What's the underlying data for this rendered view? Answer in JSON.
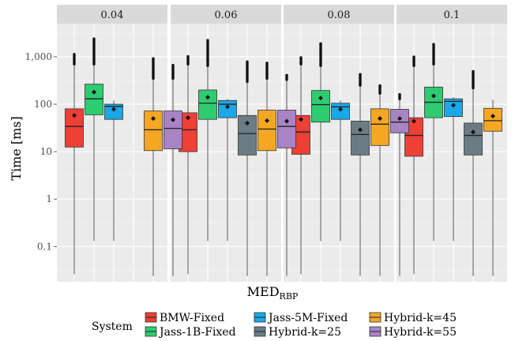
{
  "chart_data": {
    "type": "boxplot",
    "facet_label": "MED",
    "facet_label_subscript": "RBP",
    "facets": [
      "0.04",
      "0.06",
      "0.08",
      "0.1"
    ],
    "ylabel": "Time [ms]",
    "y_scale": "log10",
    "ylim": [
      0.018,
      5000
    ],
    "y_ticks": [
      0.1,
      1,
      10,
      100,
      1000
    ],
    "y_tick_labels": [
      "0.1",
      "1",
      "10",
      "100",
      "1,000"
    ],
    "legend": {
      "title": "System",
      "position": "bottom",
      "entries": [
        {
          "label": "BMW-Fixed",
          "color": "#ee4035"
        },
        {
          "label": "Jass-1B-Fixed",
          "color": "#2ecc71"
        },
        {
          "label": "Jass-5M-Fixed",
          "color": "#1aa8e8"
        },
        {
          "label": "Hybrid-k=25",
          "color": "#6b7c85"
        },
        {
          "label": "Hybrid-k=45",
          "color": "#f5a623"
        },
        {
          "label": "Hybrid-k=55",
          "color": "#a984c4"
        }
      ]
    },
    "series": [
      {
        "name": "BMW-Fixed",
        "color": "#ee4035",
        "data": [
          {
            "facet": "0.04",
            "whisker_low": 0.026,
            "q1": 12.5,
            "median": 34,
            "q3": 80,
            "whisker_high": 700,
            "outlier_max": 1150,
            "mean": 58
          },
          {
            "facet": "0.06",
            "whisker_low": 0.026,
            "q1": 10,
            "median": 29,
            "q3": 66,
            "whisker_high": 700,
            "outlier_max": 1050,
            "mean": 52
          },
          {
            "facet": "0.08",
            "whisker_low": 0.026,
            "q1": 8.8,
            "median": 26,
            "q3": 58,
            "whisker_high": 700,
            "outlier_max": 1000,
            "mean": 48
          },
          {
            "facet": "0.1",
            "whisker_low": 0.026,
            "q1": 8,
            "median": 22,
            "q3": 52,
            "whisker_high": 650,
            "outlier_max": 1000,
            "mean": 44
          }
        ]
      },
      {
        "name": "Jass-1B-Fixed",
        "color": "#2ecc71",
        "data": [
          {
            "facet": "0.04",
            "whisker_low": 0.13,
            "q1": 60,
            "median": 130,
            "q3": 265,
            "whisker_high": 700,
            "outlier_max": 2500,
            "mean": 180
          },
          {
            "facet": "0.06",
            "whisker_low": 0.13,
            "q1": 48,
            "median": 105,
            "q3": 200,
            "whisker_high": 650,
            "outlier_max": 2300,
            "mean": 140
          },
          {
            "facet": "0.08",
            "whisker_low": 0.13,
            "q1": 42,
            "median": 98,
            "q3": 195,
            "whisker_high": 650,
            "outlier_max": 2000,
            "mean": 135
          },
          {
            "facet": "0.1",
            "whisker_low": 0.13,
            "q1": 52,
            "median": 110,
            "q3": 230,
            "whisker_high": 700,
            "outlier_max": 1850,
            "mean": 150
          }
        ]
      },
      {
        "name": "Jass-5M-Fixed",
        "color": "#1aa8e8",
        "data": [
          {
            "facet": "0.04",
            "whisker_low": 0.13,
            "q1": 48,
            "median": 90,
            "q3": 100,
            "whisker_high": 120,
            "outlier_max": null,
            "mean": 78
          },
          {
            "facet": "0.06",
            "whisker_low": 0.13,
            "q1": 52,
            "median": 100,
            "q3": 120,
            "whisker_high": 130,
            "outlier_max": null,
            "mean": 88
          },
          {
            "facet": "0.08",
            "whisker_low": 0.13,
            "q1": 48,
            "median": 88,
            "q3": 105,
            "whisker_high": 120,
            "outlier_max": null,
            "mean": 78
          },
          {
            "facet": "0.1",
            "whisker_low": 0.13,
            "q1": 55,
            "median": 115,
            "q3": 130,
            "whisker_high": 140,
            "outlier_max": null,
            "mean": 95
          }
        ]
      },
      {
        "name": "Hybrid-k=25",
        "color": "#6b7c85",
        "data": [
          {
            "facet": "0.06",
            "whisker_low": 0.024,
            "q1": 8.5,
            "median": 24,
            "q3": 58,
            "whisker_high": 300,
            "outlier_max": 820,
            "mean": 40
          },
          {
            "facet": "0.08",
            "whisker_low": 0.024,
            "q1": 8.5,
            "median": 23,
            "q3": 44,
            "whisker_high": 250,
            "outlier_max": 450,
            "mean": 29
          },
          {
            "facet": "0.1",
            "whisker_low": 0.024,
            "q1": 8.5,
            "median": 22,
            "q3": 40,
            "whisker_high": 220,
            "outlier_max": 500,
            "mean": 26
          }
        ]
      },
      {
        "name": "Hybrid-k=45",
        "color": "#f5a623",
        "data": [
          {
            "facet": "0.04",
            "whisker_low": 0.024,
            "q1": 10.5,
            "median": 29,
            "q3": 72,
            "whisker_high": 350,
            "outlier_max": 950,
            "mean": 50
          },
          {
            "facet": "0.06",
            "whisker_low": 0.024,
            "q1": 10.5,
            "median": 30,
            "q3": 75,
            "whisker_high": 350,
            "outlier_max": 750,
            "mean": 45
          },
          {
            "facet": "0.08",
            "whisker_low": 0.024,
            "q1": 13.5,
            "median": 38,
            "q3": 80,
            "whisker_high": 170,
            "outlier_max": 260,
            "mean": 50
          },
          {
            "facet": "0.1",
            "whisker_low": 0.024,
            "q1": 27,
            "median": 45,
            "q3": 82,
            "whisker_high": 125,
            "outlier_max": null,
            "mean": 56
          }
        ]
      },
      {
        "name": "Hybrid-k=55",
        "color": "#a984c4",
        "data": [
          {
            "facet": "0.04",
            "whisker_low": 0.024,
            "q1": 11.5,
            "median": 31,
            "q3": 72,
            "whisker_high": 350,
            "outlier_max": 700,
            "mean": 47
          },
          {
            "facet": "0.06",
            "whisker_low": 0.024,
            "q1": 12,
            "median": 34,
            "q3": 75,
            "whisker_high": 330,
            "outlier_max": 430,
            "mean": 44
          },
          {
            "facet": "0.08",
            "whisker_low": 0.024,
            "q1": 25,
            "median": 42,
            "q3": 78,
            "whisker_high": 130,
            "outlier_max": 170,
            "mean": 50
          }
        ]
      }
    ]
  }
}
